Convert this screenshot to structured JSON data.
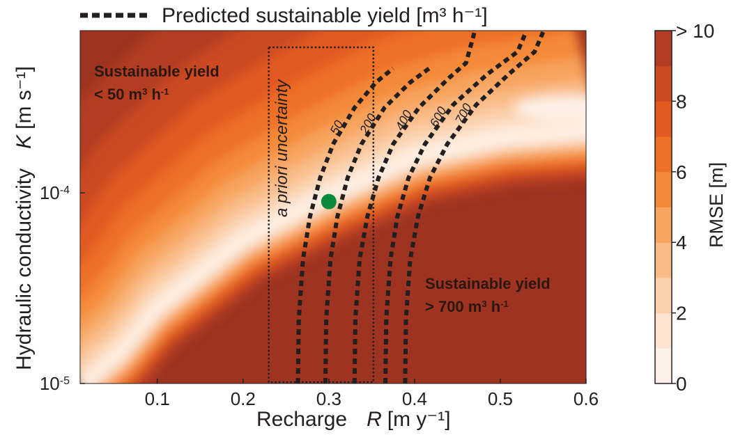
{
  "chart_data": {
    "type": "heatmap",
    "legend": {
      "line_label": "Predicted sustainable yield [m³ h⁻¹]",
      "placement": "top"
    },
    "x_axis": {
      "label_prefix": "Recharge",
      "symbol": "R",
      "unit": "[m y⁻¹]",
      "range": [
        0.01,
        0.6
      ],
      "ticks": [
        0.1,
        0.2,
        0.3,
        0.4,
        0.5,
        0.6
      ],
      "tick_labels": [
        "0.1",
        "0.2",
        "0.3",
        "0.4",
        "0.5",
        "0.6"
      ]
    },
    "y_axis": {
      "label_prefix": "Hydraulic conductivity",
      "symbol": "K",
      "unit": "[m s⁻¹]",
      "scale": "log",
      "range": [
        1e-05,
        0.00071
      ],
      "ticks": [
        1e-05,
        0.0001
      ],
      "tick_labels": [
        {
          "base": "10",
          "exp": "-5"
        },
        {
          "base": "10",
          "exp": "-4"
        }
      ]
    },
    "colorbar": {
      "label": "RMSE [m]",
      "range": [
        0,
        10
      ],
      "levels": [
        0,
        1,
        2,
        3,
        4,
        5,
        6,
        7,
        8,
        9,
        10
      ],
      "tick_labels": [
        "0",
        "2",
        "4",
        "6",
        "8",
        "> 10"
      ],
      "colors": [
        "#fdf0e6",
        "#fde4d0",
        "#fbd0ab",
        "#f9bb87",
        "#f7a45e",
        "#f48a37",
        "#ee7025",
        "#e25a20",
        "#cc4a22",
        "#b33d23",
        "#9e3321"
      ]
    },
    "rmse_field": {
      "description_free": true,
      "valley_points": [
        {
          "R": 0.06,
          "K": 1.44e-05
        },
        {
          "R": 0.1,
          "K": 2.39e-05
        },
        {
          "R": 0.2,
          "K": 5.46e-05
        },
        {
          "R": 0.3,
          "K": 9.33e-05
        },
        {
          "R": 0.4,
          "K": 0.000148
        },
        {
          "R": 0.5,
          "K": 0.000186
        },
        {
          "R": 0.6,
          "K": 0.000204
        }
      ]
    },
    "yield_contours": [
      {
        "label": "50",
        "points": [
          [
            0.264,
            1e-05
          ],
          [
            0.265,
            2.2e-05
          ],
          [
            0.27,
            4.5e-05
          ],
          [
            0.278,
            7.5e-05
          ],
          [
            0.29,
            0.00012
          ],
          [
            0.305,
            0.00018
          ],
          [
            0.33,
            0.00028
          ],
          [
            0.355,
            0.00038
          ],
          [
            0.375,
            0.00045
          ]
        ]
      },
      {
        "label": "200",
        "points": [
          [
            0.296,
            1e-05
          ],
          [
            0.297,
            2.2e-05
          ],
          [
            0.302,
            4.5e-05
          ],
          [
            0.31,
            7.5e-05
          ],
          [
            0.322,
            0.00012
          ],
          [
            0.338,
            0.00018
          ],
          [
            0.365,
            0.00028
          ],
          [
            0.395,
            0.00038
          ],
          [
            0.42,
            0.00046
          ]
        ]
      },
      {
        "label": "400",
        "points": [
          [
            0.33,
            1e-05
          ],
          [
            0.331,
            2.2e-05
          ],
          [
            0.336,
            4.5e-05
          ],
          [
            0.345,
            7.5e-05
          ],
          [
            0.358,
            0.00012
          ],
          [
            0.375,
            0.00018
          ],
          [
            0.405,
            0.00028
          ],
          [
            0.44,
            0.0004
          ],
          [
            0.46,
            0.00048
          ],
          [
            0.47,
            0.0007
          ]
        ]
      },
      {
        "label": "600",
        "points": [
          [
            0.366,
            1e-05
          ],
          [
            0.367,
            2.2e-05
          ],
          [
            0.372,
            4.5e-05
          ],
          [
            0.38,
            7.5e-05
          ],
          [
            0.393,
            0.00012
          ],
          [
            0.412,
            0.00018
          ],
          [
            0.445,
            0.00029
          ],
          [
            0.485,
            0.00042
          ],
          [
            0.52,
            0.00055
          ],
          [
            0.53,
            0.0007
          ]
        ]
      },
      {
        "label": "700",
        "points": [
          [
            0.389,
            1e-05
          ],
          [
            0.39,
            2.2e-05
          ],
          [
            0.395,
            4.5e-05
          ],
          [
            0.404,
            7.5e-05
          ],
          [
            0.418,
            0.00012
          ],
          [
            0.438,
            0.00018
          ],
          [
            0.472,
            0.00029
          ],
          [
            0.51,
            0.00042
          ],
          [
            0.54,
            0.00055
          ],
          [
            0.55,
            0.0007
          ]
        ]
      }
    ],
    "prior_box": {
      "label": "a priori uncertainty",
      "R": [
        0.23,
        0.352
      ],
      "K": [
        1e-05,
        0.00058
      ]
    },
    "best_fit_point": {
      "R": 0.3,
      "K": 9e-05,
      "color": "#0b8a3e"
    },
    "annotations": [
      {
        "line1": "Sustainable yield",
        "line2_prefix": "< 50 m",
        "line2_exp1": "3",
        "line2_mid": " h",
        "line2_exp2": "-1"
      },
      {
        "line1": "Sustainable yield",
        "line2_prefix": "> 700 m",
        "line2_exp1": "3",
        "line2_mid": " h",
        "line2_exp2": "-1"
      }
    ],
    "grid": false
  }
}
